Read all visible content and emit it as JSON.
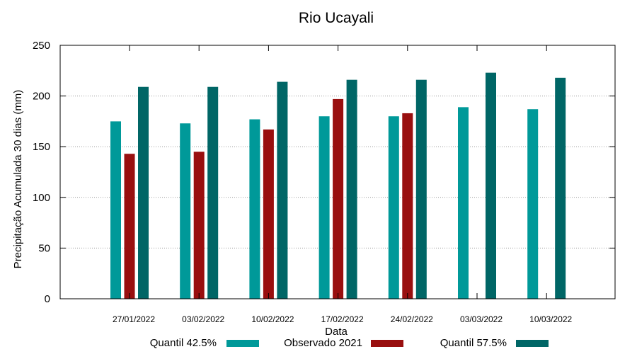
{
  "chart_data": {
    "type": "bar",
    "title": "Rio Ucayali",
    "xlabel": "Data",
    "ylabel": "Precipitação Acumulada 30 dias (mm)",
    "ylim": [
      0,
      250
    ],
    "yticks": [
      0,
      50,
      100,
      150,
      200,
      250
    ],
    "grid": "horizontal dotted",
    "legend_position": "bottom",
    "categories": [
      "27/01/2022",
      "03/02/2022",
      "10/02/2022",
      "17/02/2022",
      "24/02/2022",
      "03/03/2022",
      "10/03/2022"
    ],
    "series": [
      {
        "name": "Quantil 42.5%",
        "color": "#009999",
        "values": [
          175,
          173,
          177,
          180,
          180,
          189,
          187
        ]
      },
      {
        "name": "Observado 2021",
        "color": "#990f0f",
        "values": [
          143,
          145,
          167,
          197,
          183,
          null,
          null
        ]
      },
      {
        "name": "Quantil 57.5%",
        "color": "#006666",
        "values": [
          209,
          209,
          214,
          216,
          216,
          223,
          218
        ]
      }
    ]
  }
}
